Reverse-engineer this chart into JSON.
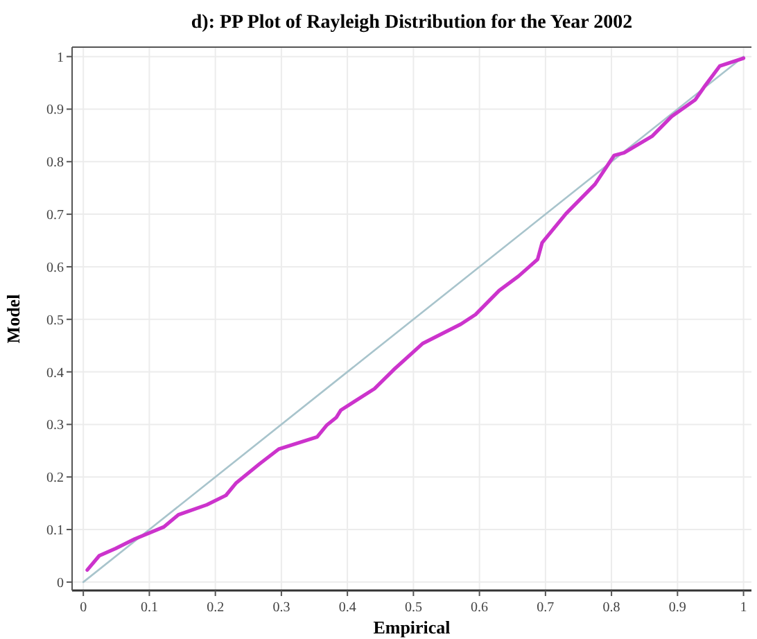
{
  "chart_data": {
    "type": "line",
    "title": "d): PP Plot of Rayleigh Distribution for the Year 2002",
    "xlabel": "Empirical",
    "ylabel": "Model",
    "xlim": [
      -0.017,
      1.012
    ],
    "ylim": [
      -0.016,
      1.018
    ],
    "xticks": [
      0,
      0.1,
      0.2,
      0.3,
      0.4,
      0.5,
      0.6,
      0.7,
      0.8,
      0.9,
      1
    ],
    "yticks": [
      0,
      0.1,
      0.2,
      0.3,
      0.4,
      0.5,
      0.6,
      0.7,
      0.8,
      0.9,
      1
    ],
    "grid": true,
    "line_style": "solid",
    "series": [
      {
        "color": "#a8c4cc",
        "x": [
          0,
          1
        ],
        "values": [
          0,
          1
        ]
      },
      {
        "color": "#cc33cc",
        "x": [
          0.006,
          0.024,
          0.049,
          0.078,
          0.122,
          0.144,
          0.187,
          0.216,
          0.231,
          0.267,
          0.296,
          0.354,
          0.369,
          0.383,
          0.39,
          0.441,
          0.47,
          0.514,
          0.572,
          0.594,
          0.63,
          0.659,
          0.688,
          0.695,
          0.731,
          0.775,
          0.804,
          0.819,
          0.862,
          0.891,
          0.927,
          0.942,
          0.964,
          1.0
        ],
        "values": [
          0.023,
          0.05,
          0.064,
          0.082,
          0.105,
          0.128,
          0.147,
          0.165,
          0.188,
          0.225,
          0.253,
          0.276,
          0.299,
          0.313,
          0.327,
          0.368,
          0.404,
          0.454,
          0.491,
          0.509,
          0.555,
          0.582,
          0.614,
          0.646,
          0.701,
          0.757,
          0.812,
          0.817,
          0.849,
          0.886,
          0.918,
          0.945,
          0.982,
          0.997
        ]
      }
    ]
  }
}
